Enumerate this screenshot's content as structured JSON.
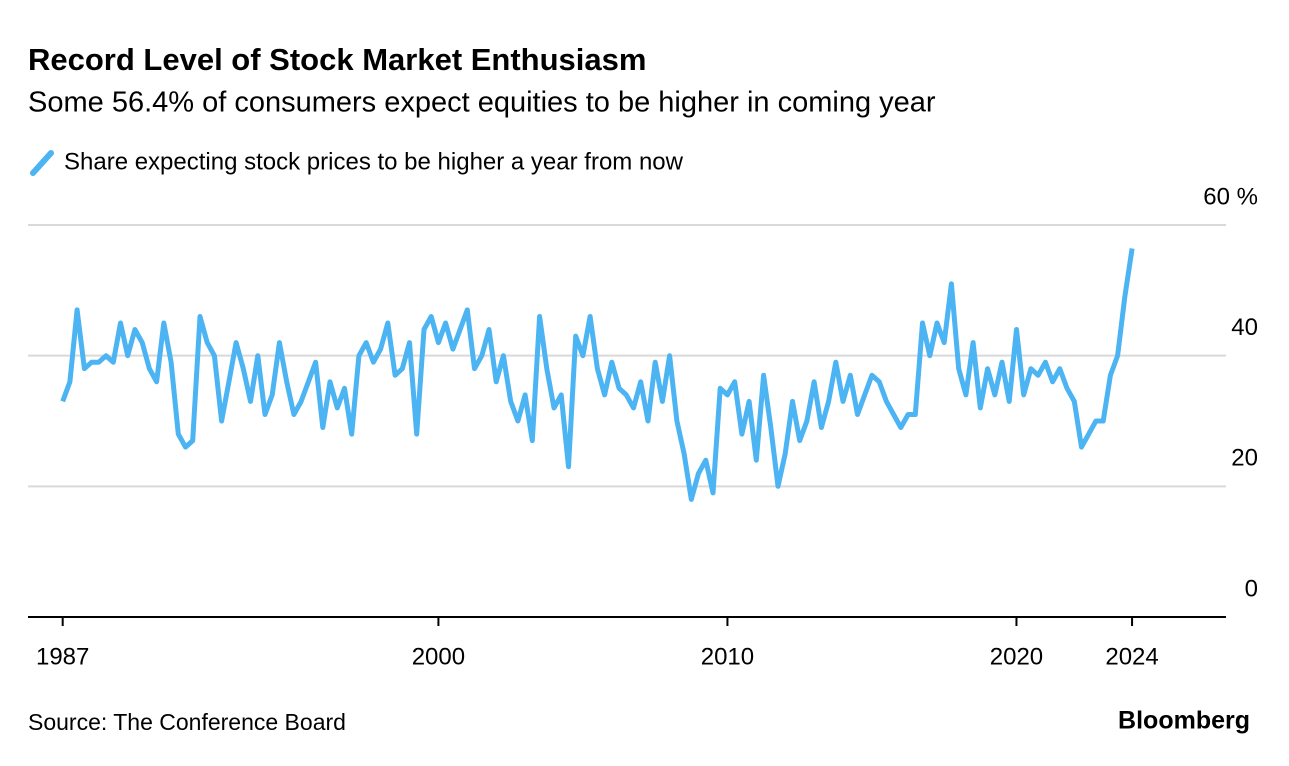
{
  "chart_data": {
    "type": "line",
    "title": "Record Level of Stock Market Enthusiasm",
    "subtitle": "Some 56.4% of consumers expect equities to be higher in coming year",
    "source": "Source: The Conference Board",
    "brand": "Bloomberg",
    "series": [
      {
        "name": "Share expecting stock prices to be higher a year from now",
        "color": "#4cb4f2",
        "values": [
          33,
          36,
          47,
          38,
          39,
          39,
          40,
          39,
          45,
          40,
          44,
          42,
          38,
          36,
          45,
          39,
          28,
          26,
          27,
          46,
          42,
          40,
          30,
          36,
          42,
          38,
          33,
          40,
          31,
          34,
          42,
          36,
          31,
          33,
          36,
          39,
          29,
          36,
          32,
          35,
          28,
          40,
          42,
          39,
          41,
          45,
          37,
          38,
          42,
          28,
          44,
          46,
          42,
          45,
          41,
          44,
          47,
          38,
          40,
          44,
          36,
          40,
          33,
          30,
          34,
          27,
          46,
          38,
          32,
          34,
          23,
          43,
          40,
          46,
          38,
          34,
          39,
          35,
          34,
          32,
          36,
          30,
          39,
          33,
          40,
          30,
          25,
          18,
          22,
          24,
          19,
          35,
          34,
          36,
          28,
          33,
          24,
          37,
          29,
          20,
          25,
          33,
          27,
          30,
          36,
          29,
          33,
          39,
          33,
          37,
          31,
          34,
          37,
          36,
          33,
          31,
          29,
          31,
          31,
          45,
          40,
          45,
          42,
          51,
          38,
          34,
          42,
          32,
          38,
          34,
          39,
          33,
          44,
          34,
          38,
          37,
          39,
          36,
          38,
          35,
          33,
          26,
          28,
          30,
          30,
          37,
          40,
          49,
          56.4
        ]
      }
    ],
    "x": [
      1987,
      1987.25,
      1987.5,
      1987.75,
      1988,
      1988.25,
      1988.5,
      1988.75,
      1989,
      1989.25,
      1989.5,
      1989.75,
      1990,
      1990.25,
      1990.5,
      1990.75,
      1991,
      1991.25,
      1991.5,
      1991.75,
      1992,
      1992.25,
      1992.5,
      1992.75,
      1993,
      1993.25,
      1993.5,
      1993.75,
      1994,
      1994.25,
      1994.5,
      1994.75,
      1995,
      1995.25,
      1995.5,
      1995.75,
      1996,
      1996.25,
      1996.5,
      1996.75,
      1997,
      1997.25,
      1997.5,
      1997.75,
      1998,
      1998.25,
      1998.5,
      1998.75,
      1999,
      1999.25,
      1999.5,
      1999.75,
      2000,
      2000.25,
      2000.5,
      2000.75,
      2001,
      2001.25,
      2001.5,
      2001.75,
      2002,
      2002.25,
      2002.5,
      2002.75,
      2003,
      2003.25,
      2003.5,
      2003.75,
      2004,
      2004.25,
      2004.5,
      2004.75,
      2005,
      2005.25,
      2005.5,
      2005.75,
      2006,
      2006.25,
      2006.5,
      2006.75,
      2007,
      2007.25,
      2007.5,
      2007.75,
      2008,
      2008.25,
      2008.5,
      2008.75,
      2009,
      2009.25,
      2009.5,
      2009.75,
      2010,
      2010.25,
      2010.5,
      2010.75,
      2011,
      2011.25,
      2011.5,
      2011.75,
      2012,
      2012.25,
      2012.5,
      2012.75,
      2013,
      2013.25,
      2013.5,
      2013.75,
      2014,
      2014.25,
      2014.5,
      2014.75,
      2015,
      2015.25,
      2015.5,
      2015.75,
      2016,
      2016.25,
      2016.5,
      2016.75,
      2017,
      2017.25,
      2017.5,
      2017.75,
      2018,
      2018.25,
      2018.5,
      2018.75,
      2019,
      2019.25,
      2019.5,
      2019.75,
      2020,
      2020.25,
      2020.5,
      2020.75,
      2021,
      2021.25,
      2021.5,
      2021.75,
      2022,
      2022.25,
      2022.5,
      2022.75,
      2023,
      2023.25,
      2023.5,
      2023.75,
      2024
    ],
    "xlim": [
      1985.8,
      2027.25
    ],
    "xticks": [
      1987,
      2000,
      2010,
      2020,
      2024
    ],
    "ylim": [
      0,
      60
    ],
    "yticks": [
      0,
      20,
      40,
      {
        "value": 60,
        "label": "60 %"
      }
    ],
    "grid": true
  }
}
